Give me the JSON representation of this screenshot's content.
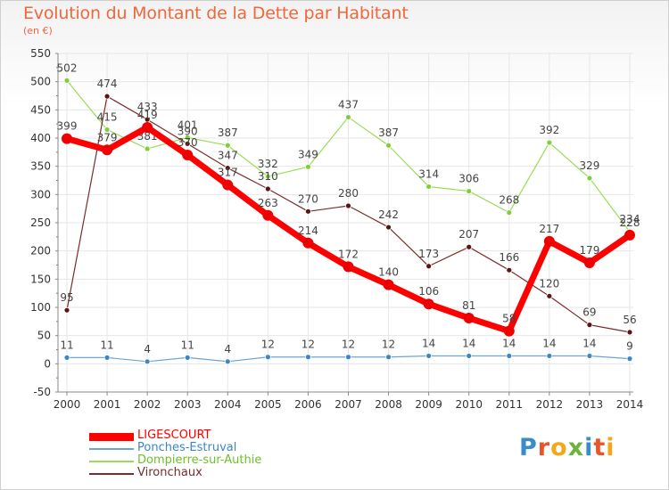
{
  "header": {
    "title": "Evolution du Montant de la Dette par Habitant",
    "subtitle": "(en €)"
  },
  "colors": {
    "title": "#f0673c",
    "grid": "#e6e6e6",
    "axis": "#888888",
    "axis_labels": "#333333"
  },
  "logo": {
    "text": "Proxiti",
    "letter_colors": [
      "#3a8bc9",
      "#e8552a",
      "#f2a71c",
      "#6db33f",
      "#3a8bc9",
      "#e8552a",
      "#f2a71c"
    ]
  },
  "chart_data": {
    "type": "line",
    "title": "Evolution du Montant de la Dette par Habitant",
    "subtitle": "(en €)",
    "xlabel": "",
    "ylabel": "",
    "categories": [
      "2000",
      "2001",
      "2002",
      "2003",
      "2004",
      "2005",
      "2006",
      "2007",
      "2008",
      "2009",
      "2010",
      "2011",
      "2012",
      "2013",
      "2014"
    ],
    "ylim": [
      -50,
      550
    ],
    "yticks": [
      -50,
      0,
      50,
      100,
      150,
      200,
      250,
      300,
      350,
      400,
      450,
      500,
      550
    ],
    "grid": true,
    "legend_position": "bottom-left",
    "series": [
      {
        "name": "Dompierre-sur-Authie",
        "color": "#99dd55",
        "marker": "#7fcf3a",
        "width": 1.2,
        "values": [
          502,
          415,
          381,
          401,
          387,
          332,
          349,
          437,
          387,
          314,
          306,
          268,
          392,
          329,
          234
        ],
        "labels": [
          "502",
          "415",
          "381",
          "401",
          "387",
          "332",
          "349",
          "437",
          "387",
          "314",
          "306",
          "268",
          "392",
          "329",
          "234"
        ]
      },
      {
        "name": "Vironchaux",
        "color": "#7a2c2c",
        "marker": "#5a1414",
        "width": 1.2,
        "values": [
          95,
          474,
          433,
          390,
          347,
          310,
          270,
          280,
          242,
          173,
          207,
          166,
          120,
          69,
          56
        ],
        "labels": [
          "95",
          "474",
          "433",
          "390",
          "347",
          "310",
          "270",
          "280",
          "242",
          "173",
          "207",
          "166",
          "120",
          "69",
          "56"
        ]
      },
      {
        "name": "Ponches-Estruval",
        "color": "#6aa5d6",
        "marker": "#3d86c6",
        "width": 1.2,
        "values": [
          11,
          11,
          4,
          11,
          4,
          12,
          12,
          12,
          12,
          14,
          14,
          14,
          14,
          14,
          9
        ],
        "labels": [
          "11",
          "11",
          "4",
          "11",
          "4",
          "12",
          "12",
          "12",
          "12",
          "14",
          "14",
          "14",
          "14",
          "14",
          "9"
        ]
      },
      {
        "name": "LIGESCOURT",
        "color": "#ff0000",
        "marker": "#ee0000",
        "width": 7,
        "values": [
          399,
          379,
          419,
          370,
          317,
          263,
          214,
          172,
          140,
          106,
          81,
          58,
          217,
          179,
          228
        ],
        "labels": [
          "399",
          "379",
          "419",
          "370",
          "317",
          "263",
          "214",
          "172",
          "140",
          "106",
          "81",
          "58",
          "217",
          "179",
          "228"
        ]
      }
    ],
    "legend": [
      "LIGESCOURT",
      "Ponches-Estruval",
      "Dompierre-sur-Authie",
      "Vironchaux"
    ]
  }
}
